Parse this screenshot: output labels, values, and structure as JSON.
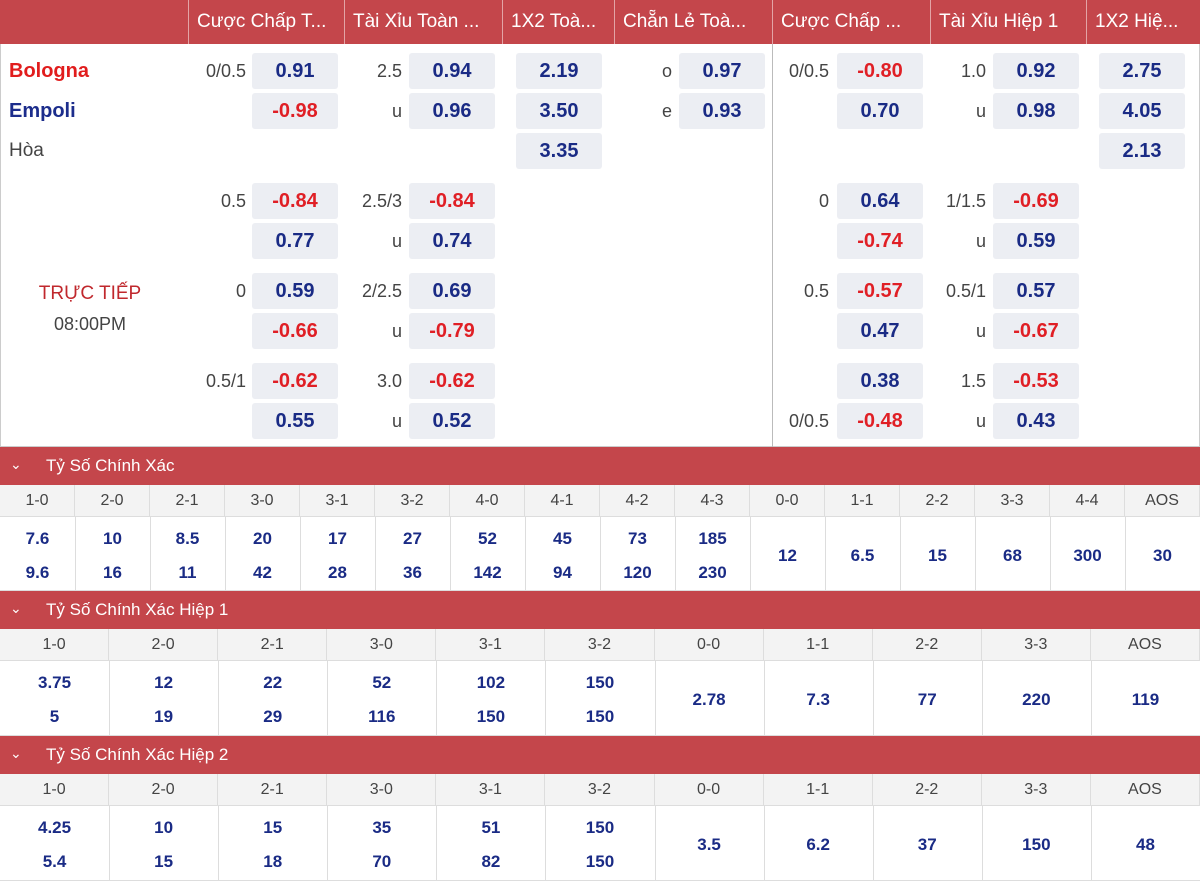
{
  "header": {
    "columns": [
      "Cược Chấp T...",
      "Tài Xỉu Toàn ...",
      "1X2 Toà...",
      "Chẵn Lẻ Toà...",
      "Cược Chấp ...",
      "Tài Xỉu Hiệp 1",
      "1X2 Hiệ..."
    ]
  },
  "match": {
    "home": "Bologna",
    "away": "Empoli",
    "draw": "Hòa",
    "status": "TRỰC TIẾP",
    "time": "08:00PM"
  },
  "ft_handicap": [
    {
      "line": "0/0.5",
      "home": "0.91",
      "away": "-0.98"
    },
    {
      "line": "0.5",
      "home": "-0.84",
      "away": "0.77"
    },
    {
      "line": "0",
      "home": "0.59",
      "away": "-0.66"
    },
    {
      "line": "0.5/1",
      "home": "-0.62",
      "away": "0.55"
    }
  ],
  "ft_ou": [
    {
      "line": "2.5",
      "over": "0.94",
      "under_label": "u",
      "under": "0.96"
    },
    {
      "line": "2.5/3",
      "over": "-0.84",
      "under_label": "u",
      "under": "0.74"
    },
    {
      "line": "2/2.5",
      "over": "0.69",
      "under_label": "u",
      "under": "-0.79"
    },
    {
      "line": "3.0",
      "over": "-0.62",
      "under_label": "u",
      "under": "0.52"
    }
  ],
  "ft_1x2": {
    "home": "2.19",
    "away": "3.50",
    "draw": "3.35"
  },
  "ft_oddeven": {
    "odd_label": "o",
    "odd": "0.97",
    "even_label": "e",
    "even": "0.93"
  },
  "h1_handicap": [
    {
      "line_home": "0/0.5",
      "home": "-0.80",
      "line_away": "",
      "away": "0.70"
    },
    {
      "line_home": "0",
      "home": "0.64",
      "line_away": "",
      "away": "-0.74"
    },
    {
      "line_home": "0.5",
      "home": "-0.57",
      "line_away": "",
      "away": "0.47"
    },
    {
      "line_home": "",
      "home": "0.38",
      "line_away": "0/0.5",
      "away": "-0.48"
    }
  ],
  "h1_ou": [
    {
      "line": "1.0",
      "over": "0.92",
      "under_label": "u",
      "under": "0.98"
    },
    {
      "line": "1/1.5",
      "over": "-0.69",
      "under_label": "u",
      "under": "0.59"
    },
    {
      "line": "0.5/1",
      "over": "0.57",
      "under_label": "u",
      "under": "-0.67"
    },
    {
      "line": "1.5",
      "over": "-0.53",
      "under_label": "u",
      "under": "0.43"
    }
  ],
  "h1_1x2": {
    "home": "2.75",
    "away": "4.05",
    "draw": "2.13"
  },
  "correct_score": {
    "title": "Tỷ Số Chính Xác",
    "scores": [
      "1-0",
      "2-0",
      "2-1",
      "3-0",
      "3-1",
      "3-2",
      "4-0",
      "4-1",
      "4-2",
      "4-3",
      "0-0",
      "1-1",
      "2-2",
      "3-3",
      "4-4",
      "AOS"
    ],
    "top": [
      "7.6",
      "10",
      "8.5",
      "20",
      "17",
      "27",
      "52",
      "45",
      "73",
      "185",
      "12",
      "6.5",
      "15",
      "68",
      "300",
      "30"
    ],
    "bottom": [
      "9.6",
      "16",
      "11",
      "42",
      "28",
      "36",
      "142",
      "94",
      "120",
      "230",
      "",
      "",
      "",
      "",
      "",
      ""
    ]
  },
  "correct_score_h1": {
    "title": "Tỷ Số Chính Xác Hiệp 1",
    "scores": [
      "1-0",
      "2-0",
      "2-1",
      "3-0",
      "3-1",
      "3-2",
      "0-0",
      "1-1",
      "2-2",
      "3-3",
      "AOS"
    ],
    "top": [
      "3.75",
      "12",
      "22",
      "52",
      "102",
      "150",
      "2.78",
      "7.3",
      "77",
      "220",
      "119"
    ],
    "bottom": [
      "5",
      "19",
      "29",
      "116",
      "150",
      "150",
      "",
      "",
      "",
      "",
      ""
    ]
  },
  "correct_score_h2": {
    "title": "Tỷ Số Chính Xác Hiệp 2",
    "scores": [
      "1-0",
      "2-0",
      "2-1",
      "3-0",
      "3-1",
      "3-2",
      "0-0",
      "1-1",
      "2-2",
      "3-3",
      "AOS"
    ],
    "top": [
      "4.25",
      "10",
      "15",
      "35",
      "51",
      "150",
      "3.5",
      "6.2",
      "37",
      "150",
      "48"
    ],
    "bottom": [
      "5.4",
      "15",
      "18",
      "70",
      "82",
      "150",
      "",
      "",
      "",
      "",
      ""
    ]
  }
}
